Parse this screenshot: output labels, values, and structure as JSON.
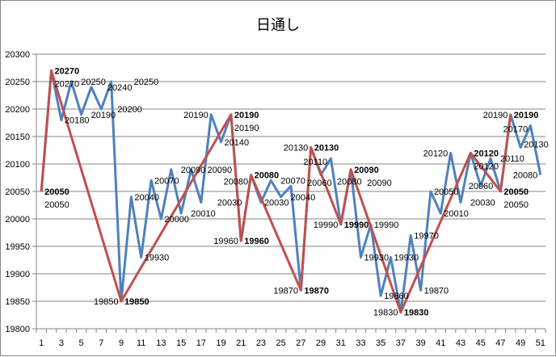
{
  "chart_data": {
    "type": "line",
    "title": "日通し",
    "xlabel": "",
    "ylabel": "",
    "x": [
      1,
      2,
      3,
      4,
      5,
      6,
      7,
      8,
      9,
      10,
      11,
      12,
      13,
      14,
      15,
      16,
      17,
      18,
      19,
      20,
      21,
      22,
      23,
      24,
      25,
      26,
      27,
      28,
      29,
      30,
      31,
      32,
      33,
      34,
      35,
      36,
      37,
      38,
      39,
      40,
      41,
      42,
      43,
      44,
      45,
      46,
      47,
      48,
      49,
      50,
      51
    ],
    "xticks": [
      1,
      3,
      5,
      7,
      9,
      11,
      13,
      15,
      17,
      19,
      21,
      23,
      25,
      27,
      29,
      31,
      33,
      35,
      37,
      39,
      41,
      43,
      45,
      47,
      49,
      51
    ],
    "ylim": [
      19800,
      20300
    ],
    "yticks": [
      19800,
      19850,
      19900,
      19950,
      20000,
      20050,
      20100,
      20150,
      20200,
      20250,
      20300
    ],
    "grid": true,
    "legend": "none",
    "series": [
      {
        "color": "#4F81BD",
        "values": [
          20050,
          20270,
          20180,
          20250,
          20190,
          20240,
          20200,
          20250,
          19850,
          20040,
          19930,
          20070,
          20000,
          20090,
          20010,
          20090,
          20030,
          20190,
          20140,
          20190,
          19960,
          20080,
          20030,
          20070,
          20040,
          20060,
          19870,
          20130,
          20080,
          20110,
          19990,
          20090,
          19930,
          19990,
          19860,
          19930,
          19830,
          19970,
          19870,
          20050,
          20010,
          20120,
          20030,
          20120,
          20060,
          20110,
          20050,
          20190,
          20130,
          20170,
          20080
        ]
      },
      {
        "color": "#C0504D",
        "points": [
          [
            1,
            20050
          ],
          [
            2,
            20270
          ],
          [
            9,
            19850
          ],
          [
            20,
            20190
          ],
          [
            21,
            19960
          ],
          [
            22,
            20080
          ],
          [
            27,
            19870
          ],
          [
            28,
            20130
          ],
          [
            31,
            19990
          ],
          [
            32,
            20090
          ],
          [
            37,
            19830
          ],
          [
            44,
            20120
          ],
          [
            47,
            20050
          ],
          [
            48,
            20190
          ]
        ]
      }
    ]
  }
}
